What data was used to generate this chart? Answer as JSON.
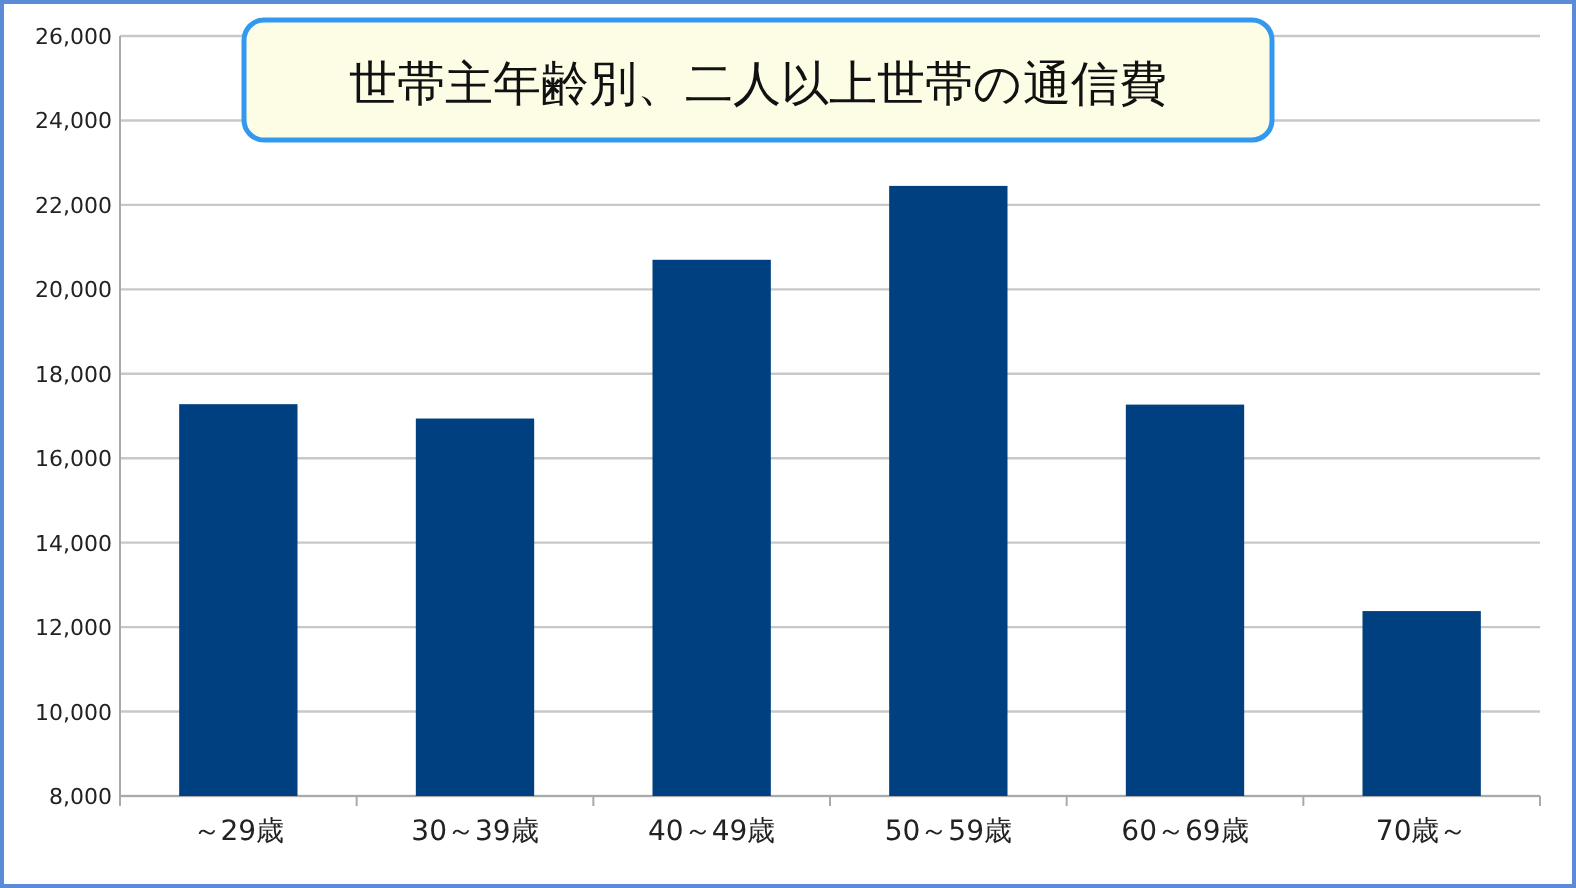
{
  "chart_data": {
    "type": "bar",
    "title": "世帯主年齢別、二人以上世帯の通信費",
    "categories": [
      "～29歳",
      "30～39歳",
      "40～49歳",
      "50～59歳",
      "60～69歳",
      "70歳～"
    ],
    "values": [
      17280,
      16940,
      20700,
      22450,
      17270,
      12380
    ],
    "color": "#004080",
    "ylim": [
      8000,
      26000
    ],
    "yticks": [
      {
        "value": 8000,
        "label": "8,000"
      },
      {
        "value": 10000,
        "label": "10,000"
      },
      {
        "value": 12000,
        "label": "12,000"
      },
      {
        "value": 14000,
        "label": "14,000"
      },
      {
        "value": 16000,
        "label": "16,000"
      },
      {
        "value": 18000,
        "label": "18,000"
      },
      {
        "value": 20000,
        "label": "20,000"
      },
      {
        "value": 22000,
        "label": "22,000"
      },
      {
        "value": 24000,
        "label": "24,000"
      },
      {
        "value": 26000,
        "label": "26,000"
      }
    ],
    "grid": "y"
  }
}
